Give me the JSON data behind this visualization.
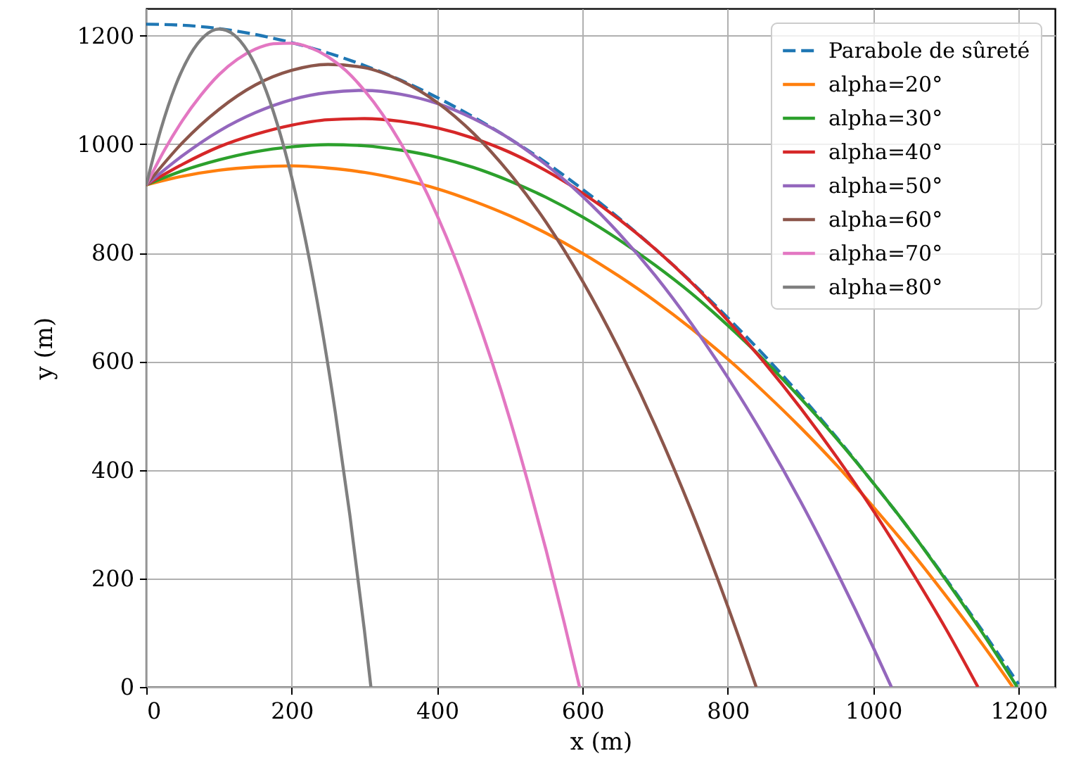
{
  "chart_data": {
    "type": "line",
    "xlabel": "x (m)",
    "ylabel": "y (m)",
    "xlim": [
      0,
      1250
    ],
    "ylim": [
      0,
      1250
    ],
    "xticks": [
      0,
      200,
      400,
      600,
      800,
      1000,
      1200
    ],
    "yticks": [
      0,
      200,
      400,
      600,
      800,
      1000,
      1200
    ],
    "grid": true,
    "legend": "top right",
    "line_style": "solid",
    "series": [
      {
        "name": "Parabole de sûreté",
        "color": "#1f77b4",
        "line_style": "dashed",
        "x": [
          0,
          50,
          100,
          150,
          200,
          250,
          300,
          350,
          400,
          450,
          500,
          550,
          600,
          650,
          700,
          750,
          800,
          850,
          900,
          950,
          1000,
          1050,
          1100,
          1150,
          1200
        ],
        "values": [
          1221,
          1219,
          1213,
          1202,
          1187,
          1168,
          1145,
          1118,
          1086,
          1050,
          1010,
          966,
          917,
          864,
          807,
          746,
          680,
          611,
          537,
          459,
          376,
          290,
          199,
          104,
          5
        ]
      },
      {
        "name": "alpha=20°",
        "color": "#ff7f0e",
        "x": [
          0,
          50,
          100,
          150,
          200,
          250,
          300,
          350,
          400,
          450,
          500,
          550,
          600,
          650,
          700,
          750,
          800,
          850,
          900,
          950,
          1000,
          1050,
          1100,
          1150,
          1192
        ],
        "values": [
          925,
          941,
          952,
          958,
          960,
          956,
          948,
          935,
          918,
          895,
          868,
          836,
          799,
          757,
          711,
          660,
          604,
          543,
          478,
          408,
          332,
          253,
          168,
          79,
          0
        ]
      },
      {
        "name": "alpha=30°",
        "color": "#2ca02c",
        "x": [
          0,
          50,
          100,
          150,
          200,
          250,
          300,
          350,
          400,
          450,
          500,
          550,
          600,
          650,
          700,
          750,
          800,
          850,
          900,
          950,
          1000,
          1050,
          1100,
          1150,
          1198
        ],
        "values": [
          925,
          951,
          971,
          986,
          995,
          999,
          997,
          989,
          976,
          957,
          932,
          902,
          866,
          824,
          777,
          725,
          666,
          602,
          532,
          457,
          376,
          290,
          197,
          100,
          0
        ]
      },
      {
        "name": "alpha=40°",
        "color": "#d62728",
        "x": [
          0,
          50,
          100,
          150,
          200,
          250,
          300,
          350,
          400,
          450,
          500,
          550,
          600,
          650,
          700,
          750,
          800,
          850,
          900,
          950,
          1000,
          1050,
          1100,
          1144
        ],
        "values": [
          925,
          963,
          995,
          1018,
          1035,
          1045,
          1047,
          1042,
          1030,
          1011,
          985,
          951,
          910,
          862,
          807,
          745,
          675,
          598,
          514,
          423,
          325,
          219,
          107,
          0
        ]
      },
      {
        "name": "alpha=50°",
        "color": "#9467bd",
        "x": [
          0,
          50,
          100,
          150,
          200,
          250,
          300,
          350,
          400,
          450,
          500,
          550,
          600,
          650,
          700,
          750,
          800,
          850,
          900,
          950,
          1000,
          1025
        ],
        "values": [
          925,
          979,
          1024,
          1058,
          1082,
          1095,
          1099,
          1092,
          1075,
          1047,
          1010,
          962,
          904,
          836,
          758,
          669,
          570,
          461,
          342,
          212,
          73,
          0
        ]
      },
      {
        "name": "alpha=60°",
        "color": "#8c564b",
        "x": [
          0,
          50,
          100,
          150,
          200,
          250,
          300,
          350,
          400,
          450,
          500,
          550,
          600,
          650,
          700,
          750,
          800,
          839
        ],
        "values": [
          925,
          1003,
          1064,
          1109,
          1136,
          1147,
          1141,
          1117,
          1077,
          1020,
          946,
          856,
          748,
          623,
          482,
          324,
          148,
          0
        ]
      },
      {
        "name": "alpha=70°",
        "color": "#e377c2",
        "x": [
          0,
          25,
          50,
          75,
          100,
          125,
          150,
          175,
          200,
          225,
          250,
          275,
          300,
          325,
          350,
          375,
          400,
          425,
          450,
          475,
          500,
          525,
          550,
          575,
          596
        ],
        "values": [
          925,
          989,
          1044,
          1090,
          1128,
          1156,
          1175,
          1185,
          1186,
          1178,
          1161,
          1135,
          1099,
          1055,
          1002,
          940,
          869,
          789,
          699,
          601,
          494,
          377,
          252,
          118,
          0
        ]
      },
      {
        "name": "alpha=80°",
        "color": "#7f7f7f",
        "x": [
          0,
          20,
          40,
          60,
          80,
          100,
          120,
          140,
          160,
          180,
          200,
          220,
          240,
          260,
          280,
          300,
          309
        ],
        "values": [
          925,
          1027,
          1107,
          1164,
          1199,
          1212,
          1202,
          1170,
          1115,
          1038,
          939,
          817,
          673,
          506,
          317,
          105,
          0
        ]
      }
    ]
  }
}
